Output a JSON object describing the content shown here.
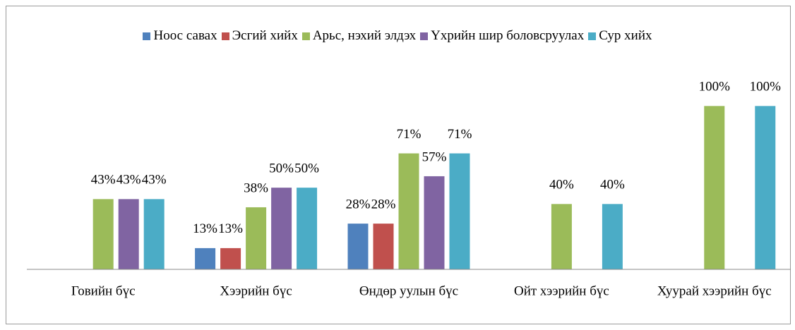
{
  "chart_data": {
    "type": "bar",
    "categories": [
      "Говийн бүс",
      "Хээрийн бүс",
      "Өндөр уулын бүс",
      "Ойт хээрийн бүс",
      "Хуурай хээрийн бүс"
    ],
    "series": [
      {
        "name": "Ноос савах",
        "color": "#4f81bd",
        "values": [
          null,
          13,
          28,
          null,
          null
        ],
        "value_labels": [
          null,
          "13%",
          "28%",
          null,
          null
        ]
      },
      {
        "name": "Эсгий хийх",
        "color": "#c0504d",
        "values": [
          null,
          13,
          28,
          null,
          null
        ],
        "value_labels": [
          null,
          "13%",
          "28%",
          null,
          null
        ]
      },
      {
        "name": "Арьс, нэхий элдэх",
        "color": "#9bbb59",
        "values": [
          43,
          38,
          71,
          40,
          100
        ],
        "value_labels": [
          "43%",
          "38%",
          "71%",
          "40%",
          "100%"
        ]
      },
      {
        "name": "Үхрийн шир боловсруулах",
        "color": "#8064a2",
        "values": [
          43,
          50,
          57,
          null,
          null
        ],
        "value_labels": [
          "43%",
          "50%",
          "57%",
          null,
          null
        ]
      },
      {
        "name": "Сур хийх",
        "color": "#4bacc6",
        "values": [
          43,
          50,
          71,
          40,
          100
        ],
        "value_labels": [
          "43%",
          "50%",
          "71%",
          "40%",
          "100%"
        ]
      }
    ],
    "ylim": [
      0,
      120
    ],
    "legend": "top"
  }
}
